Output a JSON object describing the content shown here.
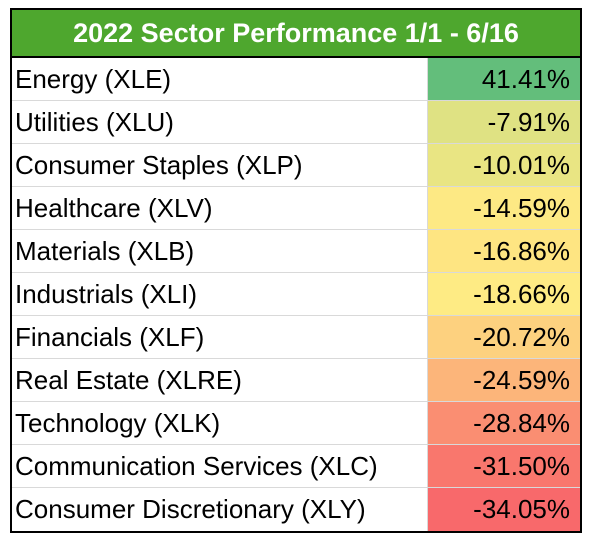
{
  "chart_data": {
    "type": "table",
    "title": "2022 Sector Performance 1/1 - 6/16",
    "rows": [
      {
        "name": "Energy (XLE)",
        "value": 41.41,
        "display": "41.41%",
        "color": "#63be7b"
      },
      {
        "name": "Utilities (XLU)",
        "value": -7.91,
        "display": "-7.91%",
        "color": "#dfe283"
      },
      {
        "name": "Consumer Staples (XLP)",
        "value": -10.01,
        "display": "-10.01%",
        "color": "#e9e583"
      },
      {
        "name": "Healthcare (XLV)",
        "value": -14.59,
        "display": "-14.59%",
        "color": "#fde984"
      },
      {
        "name": "Materials (XLB)",
        "value": -16.86,
        "display": "-16.86%",
        "color": "#fee582"
      },
      {
        "name": "Industrials (XLI)",
        "value": -18.66,
        "display": "-18.66%",
        "color": "#feeb84"
      },
      {
        "name": "Financials (XLF)",
        "value": -20.72,
        "display": "-20.72%",
        "color": "#fdd17f"
      },
      {
        "name": "Real Estate (XLRE)",
        "value": -24.59,
        "display": "-24.59%",
        "color": "#fcb57a"
      },
      {
        "name": "Technology (XLK)",
        "value": -28.84,
        "display": "-28.84%",
        "color": "#fa8e72"
      },
      {
        "name": "Communication Services (XLC)",
        "value": -31.5,
        "display": "-31.50%",
        "color": "#f9776d"
      },
      {
        "name": "Consumer Discretionary (XLY)",
        "value": -34.05,
        "display": "-34.05%",
        "color": "#f8696b"
      }
    ],
    "title_color": "#4ea72e"
  }
}
